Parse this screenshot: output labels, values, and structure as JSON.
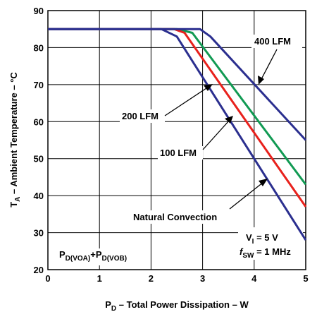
{
  "chart_data": {
    "type": "line",
    "title": "",
    "xlabel": {
      "main": "P",
      "sub": "D",
      "rest": " – Total Power Dissipation – W"
    },
    "ylabel": {
      "main": "T",
      "sub": "A",
      "rest": " – Ambient Temperature – °C"
    },
    "xlim": [
      0,
      5
    ],
    "ylim": [
      20,
      90
    ],
    "xticks": [
      "0",
      "1",
      "2",
      "3",
      "4",
      "5"
    ],
    "yticks": [
      "20",
      "30",
      "40",
      "50",
      "60",
      "70",
      "80",
      "90"
    ],
    "grid": true,
    "series": [
      {
        "name": "Natural Convection",
        "color": "#2b2f8f",
        "x": [
          0,
          2.2,
          2.5,
          5.0
        ],
        "y": [
          85,
          85,
          83,
          28
        ]
      },
      {
        "name": "100 LFM",
        "color": "#e8211c",
        "x": [
          0,
          2.45,
          2.65,
          5.0
        ],
        "y": [
          85,
          85,
          84,
          37
        ]
      },
      {
        "name": "200 LFM",
        "color": "#119a53",
        "x": [
          0,
          2.5,
          2.8,
          5.0
        ],
        "y": [
          85,
          85,
          84,
          43
        ]
      },
      {
        "name": "400 LFM",
        "color": "#2b2f8f",
        "x": [
          0,
          2.95,
          3.15,
          5.0
        ],
        "y": [
          85,
          85,
          83,
          55
        ]
      }
    ],
    "annotations": {
      "lfm400": "400 LFM",
      "lfm200": "200 LFM",
      "lfm100": "100 LFM",
      "natural": "Natural Convection"
    },
    "conditions": {
      "vi": {
        "main": "V",
        "sub": "I",
        "rest": " = 5 V"
      },
      "fsw": {
        "main": "f",
        "sub": "SW",
        "rest": " = 1 MHz"
      },
      "pd": {
        "p1": "P",
        "s1": "D(VOA)",
        "plus": "+P",
        "s2": "D(VOB)"
      }
    }
  }
}
